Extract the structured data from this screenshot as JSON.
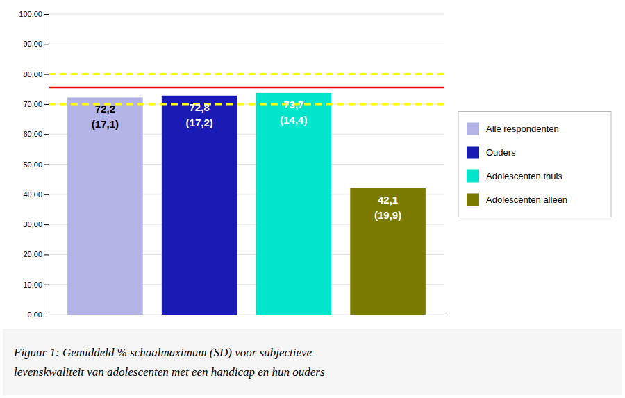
{
  "chart_data": {
    "type": "bar",
    "categories": [
      "Alle respondenten",
      "Ouders",
      "Adolescenten thuis",
      "Adolescenten alleen"
    ],
    "values": [
      72.2,
      72.8,
      73.7,
      42.1
    ],
    "value_labels": [
      "72,2",
      "72,8",
      "73,7",
      "42,1"
    ],
    "sd": [
      17.1,
      17.2,
      14.4,
      19.9
    ],
    "sd_labels": [
      "(17,1)",
      "(17,2)",
      "(14,4)",
      "(19,9)"
    ],
    "colors": [
      "#b3b3e6",
      "#1a1ab5",
      "#00e5cc",
      "#7a7a00"
    ],
    "ylim": [
      0,
      100
    ],
    "yticks": [
      {
        "value": 0,
        "label": "0,00"
      },
      {
        "value": 10,
        "label": "10,00"
      },
      {
        "value": 20,
        "label": "20,00"
      },
      {
        "value": 30,
        "label": "30,00"
      },
      {
        "value": 40,
        "label": "40,00"
      },
      {
        "value": 50,
        "label": "50,00"
      },
      {
        "value": 60,
        "label": "60,00"
      },
      {
        "value": 70,
        "label": "70,00"
      },
      {
        "value": 80,
        "label": "80,00"
      },
      {
        "value": 90,
        "label": "90,00"
      },
      {
        "value": 100,
        "label": "100,00"
      }
    ],
    "reference_lines": [
      {
        "value": 80.0,
        "color": "#ffff00",
        "line_style": "dashed"
      },
      {
        "value": 75.5,
        "color": "red",
        "line_style": "solid"
      },
      {
        "value": 70.0,
        "color": "#ffff00",
        "line_style": "dashed"
      }
    ],
    "annotations": [
      "Figuur 1: Gemiddeld % schaalmaximum (SD) voor subjectieve",
      "levenskwaliteit van adolescenten met een handicap en hun ouders"
    ],
    "grid": true,
    "legend": "right",
    "data_labels": true,
    "tick_labels": "y"
  }
}
